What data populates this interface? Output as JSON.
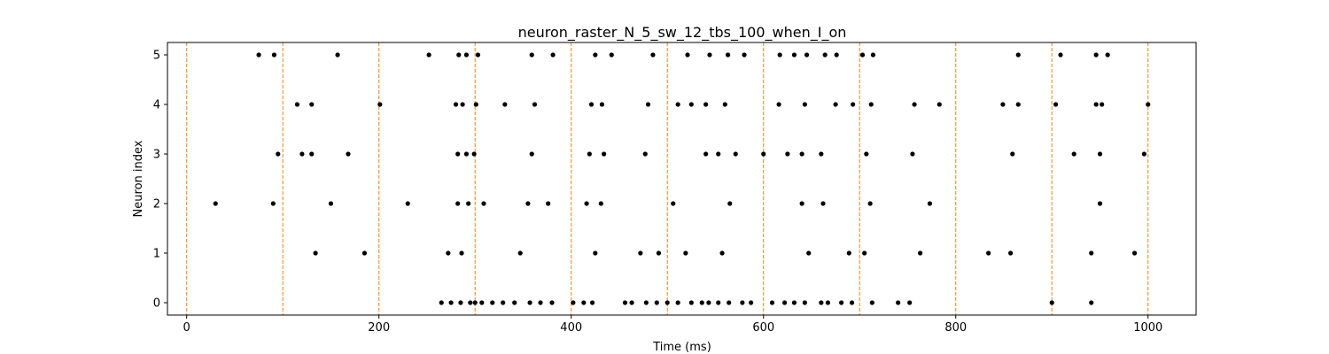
{
  "chart_data": {
    "type": "scatter",
    "title": "neuron_raster_N_5_sw_12_tbs_100_when_I_on",
    "xlabel": "Time (ms)",
    "ylabel": "Neuron index",
    "xlim": [
      -20,
      1050
    ],
    "ylim": [
      -0.25,
      5.25
    ],
    "x_ticks": [
      0,
      200,
      400,
      600,
      800,
      1000
    ],
    "y_ticks": [
      0,
      1,
      2,
      3,
      4,
      5
    ],
    "grid": false,
    "legend": "none",
    "marker_color": "#000000",
    "vline_color": "#ff7f0e",
    "vlines": [
      0,
      100,
      200,
      300,
      400,
      500,
      600,
      700,
      800,
      900,
      1000
    ],
    "series": [
      {
        "neuron": 0,
        "x": [
          265,
          275,
          285,
          295,
          300,
          307,
          318,
          329,
          341,
          357,
          368,
          380,
          402,
          413,
          422,
          456,
          463,
          478,
          489,
          500,
          511,
          525,
          536,
          543,
          553,
          564,
          578,
          587,
          609,
          622,
          632,
          643,
          660,
          667,
          681,
          692,
          713,
          740,
          752,
          900,
          941
        ]
      },
      {
        "neuron": 1,
        "x": [
          134,
          185,
          272,
          286,
          347,
          425,
          472,
          491,
          519,
          557,
          647,
          689,
          705,
          763,
          834,
          857,
          941,
          986
        ]
      },
      {
        "neuron": 2,
        "x": [
          30,
          90,
          150,
          230,
          282,
          293,
          309,
          355,
          376,
          416,
          431,
          506,
          565,
          640,
          662,
          711,
          773,
          950
        ]
      },
      {
        "neuron": 3,
        "x": [
          95,
          120,
          130,
          168,
          282,
          291,
          299,
          359,
          419,
          434,
          477,
          540,
          553,
          571,
          600,
          625,
          640,
          660,
          707,
          755,
          859,
          923,
          950,
          996
        ]
      },
      {
        "neuron": 4,
        "x": [
          115,
          130,
          201,
          280,
          287,
          301,
          331,
          362,
          421,
          432,
          480,
          511,
          525,
          540,
          560,
          616,
          643,
          675,
          693,
          712,
          757,
          783,
          849,
          865,
          904,
          946,
          952,
          1000
        ]
      },
      {
        "neuron": 5,
        "x": [
          75,
          91,
          157,
          252,
          283,
          291,
          303,
          359,
          381,
          425,
          442,
          485,
          521,
          544,
          563,
          580,
          617,
          632,
          645,
          664,
          676,
          703,
          714,
          865,
          909,
          946,
          958
        ]
      }
    ]
  }
}
